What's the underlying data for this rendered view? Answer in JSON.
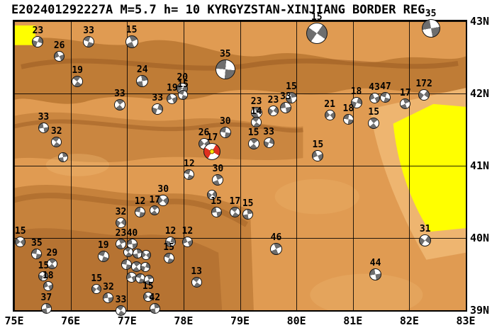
{
  "title": "E202401292227A M=5.7 h= 10 KYRGYZSTAN-XINJIANG BORDER REG.",
  "map": {
    "lon_min": 75,
    "lon_max": 83,
    "lat_min": 39,
    "lat_max": 43
  },
  "axes": {
    "lon_ticks": [
      {
        "value": 75,
        "label": "75E"
      },
      {
        "value": 76,
        "label": "76E"
      },
      {
        "value": 77,
        "label": "77E"
      },
      {
        "value": 78,
        "label": "78E"
      },
      {
        "value": 79,
        "label": "79E"
      },
      {
        "value": 80,
        "label": "80E"
      },
      {
        "value": 81,
        "label": "81E"
      },
      {
        "value": 82,
        "label": "82E"
      },
      {
        "value": 83,
        "label": "83E"
      }
    ],
    "lat_ticks": [
      {
        "value": 43,
        "label": "43N"
      },
      {
        "value": 42,
        "label": "42N"
      },
      {
        "value": 41,
        "label": "41N"
      },
      {
        "value": 40,
        "label": "40N"
      },
      {
        "value": 39,
        "label": "39N"
      }
    ]
  },
  "colors": {
    "land": "#E09B52",
    "ridge": "#B4722E",
    "ridge_dark": "#97581F",
    "light": "#F0BA75",
    "basin": "#FFFF00",
    "ball_fill": "#6E6E6E",
    "ball_bg": "#FFFFFF",
    "main_event": "#E03020",
    "main_center": "#FFE800",
    "grid": "#000000"
  },
  "beachballs": [
    {
      "lon": 75.42,
      "lat": 42.72,
      "label": "23",
      "size": 16,
      "rot": 20
    },
    {
      "lon": 75.8,
      "lat": 42.51,
      "label": "26",
      "size": 15,
      "rot": 65
    },
    {
      "lon": 76.32,
      "lat": 42.72,
      "label": "33",
      "size": 16,
      "rot": 110
    },
    {
      "lon": 77.08,
      "lat": 42.72,
      "label": "15",
      "size": 18,
      "rot": 155
    },
    {
      "lon": 80.36,
      "lat": 42.83,
      "label": "15",
      "size": 30,
      "rot": 35
    },
    {
      "lon": 82.38,
      "lat": 42.9,
      "label": "35",
      "size": 26,
      "rot": 80
    },
    {
      "lon": 76.12,
      "lat": 42.17,
      "label": "19",
      "size": 16,
      "rot": 125
    },
    {
      "lon": 77.27,
      "lat": 42.17,
      "label": "24",
      "size": 17,
      "rot": 170
    },
    {
      "lon": 77.98,
      "lat": 42.07,
      "label": "20",
      "size": 16,
      "rot": 50
    },
    {
      "lon": 78.74,
      "lat": 42.33,
      "label": "35",
      "size": 28,
      "rot": 95
    },
    {
      "lon": 76.87,
      "lat": 41.84,
      "label": "33",
      "size": 16,
      "rot": 140
    },
    {
      "lon": 77.54,
      "lat": 41.78,
      "label": "33",
      "size": 16,
      "rot": 20
    },
    {
      "lon": 77.8,
      "lat": 41.93,
      "label": "19",
      "size": 15,
      "rot": 65
    },
    {
      "lon": 77.99,
      "lat": 41.98,
      "label": "15",
      "size": 14,
      "rot": 110
    },
    {
      "lon": 79.29,
      "lat": 41.74,
      "label": "23",
      "size": 16,
      "rot": 155
    },
    {
      "lon": 79.59,
      "lat": 41.76,
      "label": "23",
      "size": 15,
      "rot": 35
    },
    {
      "lon": 79.81,
      "lat": 41.8,
      "label": "33",
      "size": 16,
      "rot": 80
    },
    {
      "lon": 79.29,
      "lat": 41.6,
      "label": "14",
      "size": 15,
      "rot": 125
    },
    {
      "lon": 79.91,
      "lat": 41.94,
      "label": "15",
      "size": 16,
      "rot": 170
    },
    {
      "lon": 80.59,
      "lat": 41.7,
      "label": "21",
      "size": 15,
      "rot": 50
    },
    {
      "lon": 80.92,
      "lat": 41.64,
      "label": "18",
      "size": 15,
      "rot": 95
    },
    {
      "lon": 81.37,
      "lat": 41.59,
      "label": "15",
      "size": 16,
      "rot": 140
    },
    {
      "lon": 81.06,
      "lat": 41.87,
      "label": "18",
      "size": 16,
      "rot": 20
    },
    {
      "lon": 81.38,
      "lat": 41.94,
      "label": "43",
      "size": 15,
      "rot": 65
    },
    {
      "lon": 81.58,
      "lat": 41.95,
      "label": "47",
      "size": 15,
      "rot": 110
    },
    {
      "lon": 81.93,
      "lat": 41.86,
      "label": "17",
      "size": 15,
      "rot": 155
    },
    {
      "lon": 82.26,
      "lat": 41.98,
      "label": "172",
      "size": 16,
      "rot": 35
    },
    {
      "lon": 75.52,
      "lat": 41.52,
      "label": "33",
      "size": 15,
      "rot": 80
    },
    {
      "lon": 75.75,
      "lat": 41.33,
      "label": "32",
      "size": 15,
      "rot": 125
    },
    {
      "lon": 75.87,
      "lat": 41.12,
      "label": "",
      "size": 14,
      "rot": 170
    },
    {
      "lon": 78.36,
      "lat": 41.3,
      "label": "26",
      "size": 16,
      "rot": 50
    },
    {
      "lon": 78.74,
      "lat": 41.46,
      "label": "30",
      "size": 16,
      "rot": 95
    },
    {
      "lon": 78.51,
      "lat": 41.2,
      "label": "17",
      "size": 24,
      "rot": 30,
      "main": true
    },
    {
      "lon": 79.24,
      "lat": 41.3,
      "label": "15",
      "size": 16,
      "rot": 140
    },
    {
      "lon": 79.51,
      "lat": 41.32,
      "label": "33",
      "size": 15,
      "rot": 20
    },
    {
      "lon": 80.38,
      "lat": 41.14,
      "label": "15",
      "size": 16,
      "rot": 65
    },
    {
      "lon": 78.1,
      "lat": 40.88,
      "label": "12",
      "size": 15,
      "rot": 110
    },
    {
      "lon": 78.61,
      "lat": 40.8,
      "label": "30",
      "size": 16,
      "rot": 155
    },
    {
      "lon": 78.51,
      "lat": 40.6,
      "label": "",
      "size": 14,
      "rot": 35
    },
    {
      "lon": 78.58,
      "lat": 40.36,
      "label": "15",
      "size": 15,
      "rot": 80
    },
    {
      "lon": 78.91,
      "lat": 40.36,
      "label": "17",
      "size": 15,
      "rot": 125
    },
    {
      "lon": 79.14,
      "lat": 40.33,
      "label": "15",
      "size": 15,
      "rot": 170
    },
    {
      "lon": 77.64,
      "lat": 40.52,
      "label": "30",
      "size": 16,
      "rot": 50
    },
    {
      "lon": 77.23,
      "lat": 40.36,
      "label": "12",
      "size": 15,
      "rot": 95
    },
    {
      "lon": 77.49,
      "lat": 40.38,
      "label": "17",
      "size": 14,
      "rot": 140
    },
    {
      "lon": 77.77,
      "lat": 39.95,
      "label": "12",
      "size": 15,
      "rot": 20
    },
    {
      "lon": 78.07,
      "lat": 39.95,
      "label": "12",
      "size": 15,
      "rot": 65
    },
    {
      "lon": 77.74,
      "lat": 39.72,
      "label": "15",
      "size": 15,
      "rot": 110
    },
    {
      "lon": 79.64,
      "lat": 39.85,
      "label": "46",
      "size": 17,
      "rot": 155
    },
    {
      "lon": 82.28,
      "lat": 39.97,
      "label": "31",
      "size": 17,
      "rot": 35
    },
    {
      "lon": 81.4,
      "lat": 39.5,
      "label": "44",
      "size": 17,
      "rot": 80
    },
    {
      "lon": 78.23,
      "lat": 39.39,
      "label": "13",
      "size": 15,
      "rot": 125
    },
    {
      "lon": 75.57,
      "lat": 39.02,
      "label": "37",
      "size": 15,
      "rot": 170
    },
    {
      "lon": 75.11,
      "lat": 39.95,
      "label": "15",
      "size": 15,
      "rot": 50
    },
    {
      "lon": 75.4,
      "lat": 39.78,
      "label": "35",
      "size": 15,
      "rot": 95
    },
    {
      "lon": 75.67,
      "lat": 39.64,
      "label": "29",
      "size": 15,
      "rot": 140
    },
    {
      "lon": 75.52,
      "lat": 39.47,
      "label": "15",
      "size": 14,
      "rot": 20
    },
    {
      "lon": 75.6,
      "lat": 39.33,
      "label": "18",
      "size": 14,
      "rot": 65
    },
    {
      "lon": 76.58,
      "lat": 39.75,
      "label": "19",
      "size": 16,
      "rot": 110
    },
    {
      "lon": 76.89,
      "lat": 39.92,
      "label": "23",
      "size": 15,
      "rot": 155
    },
    {
      "lon": 76.89,
      "lat": 40.21,
      "label": "32",
      "size": 15,
      "rot": 35
    },
    {
      "lon": 77.09,
      "lat": 39.92,
      "label": "40",
      "size": 15,
      "rot": 80
    },
    {
      "lon": 77.02,
      "lat": 39.8,
      "label": "",
      "size": 14,
      "rot": 125
    },
    {
      "lon": 77.18,
      "lat": 39.78,
      "label": "",
      "size": 14,
      "rot": 170
    },
    {
      "lon": 77.34,
      "lat": 39.76,
      "label": "",
      "size": 14,
      "rot": 50
    },
    {
      "lon": 76.99,
      "lat": 39.63,
      "label": "",
      "size": 15,
      "rot": 95
    },
    {
      "lon": 77.17,
      "lat": 39.6,
      "label": "",
      "size": 15,
      "rot": 140
    },
    {
      "lon": 77.32,
      "lat": 39.6,
      "label": "",
      "size": 14,
      "rot": 20
    },
    {
      "lon": 77.08,
      "lat": 39.46,
      "label": "",
      "size": 15,
      "rot": 65
    },
    {
      "lon": 77.24,
      "lat": 39.44,
      "label": "",
      "size": 14,
      "rot": 110
    },
    {
      "lon": 77.39,
      "lat": 39.42,
      "label": "",
      "size": 14,
      "rot": 155
    },
    {
      "lon": 76.46,
      "lat": 39.29,
      "label": "15",
      "size": 14,
      "rot": 35
    },
    {
      "lon": 76.67,
      "lat": 39.17,
      "label": "32",
      "size": 15,
      "rot": 80
    },
    {
      "lon": 76.89,
      "lat": 39.0,
      "label": "33",
      "size": 15,
      "rot": 125
    },
    {
      "lon": 77.49,
      "lat": 39.02,
      "label": "42",
      "size": 15,
      "rot": 170
    },
    {
      "lon": 77.37,
      "lat": 39.19,
      "label": "15",
      "size": 14,
      "rot": 50
    }
  ]
}
